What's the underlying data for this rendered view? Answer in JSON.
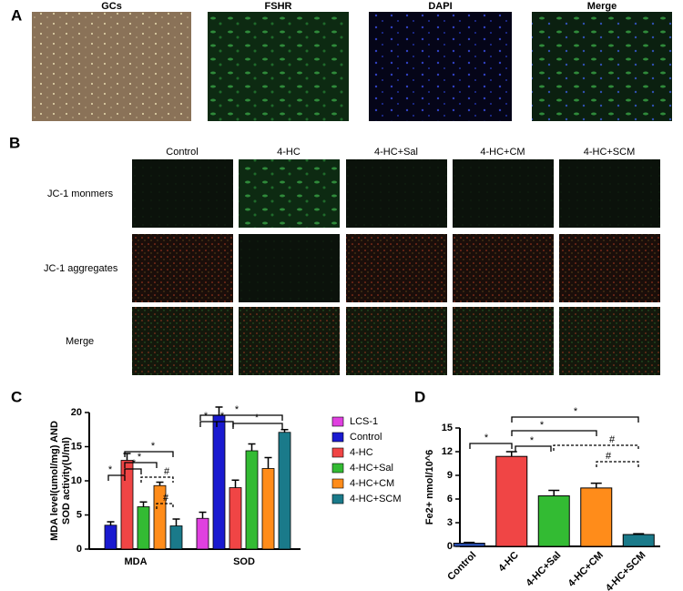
{
  "figure": {
    "panel_labels": [
      "A",
      "B",
      "C",
      "D"
    ],
    "a_titles": [
      "GCs",
      "FSHR",
      "DAPI",
      "Merge"
    ],
    "b_columns": [
      "Control",
      "4-HC",
      "4-HC+Sal",
      "4-HC+CM",
      "4-HC+SCM"
    ],
    "b_rows": [
      "JC-1 monmers",
      "JC-1 aggregates",
      "Merge"
    ]
  },
  "chart_data": [
    {
      "type": "bar",
      "y_label": [
        "MDA level(umol/mg) AND",
        "SOD  activity(U/ml)"
      ],
      "categories": [
        "MDA",
        "SOD"
      ],
      "series": [
        {
          "name": "LCS-1",
          "color": "#e040e0",
          "values": [
            null,
            4.5
          ],
          "errors": [
            null,
            0.9
          ]
        },
        {
          "name": "Control",
          "color": "#1a1ad0",
          "values": [
            3.5,
            19.6
          ],
          "errors": [
            0.5,
            1.2
          ]
        },
        {
          "name": "4-HC",
          "color": "#f04545",
          "values": [
            13,
            9
          ],
          "errors": [
            1.0,
            1.1
          ]
        },
        {
          "name": "4-HC+Sal",
          "color": "#33bb33",
          "values": [
            6.2,
            14.4
          ],
          "errors": [
            0.7,
            1.0
          ]
        },
        {
          "name": "4-HC+CM",
          "color": "#ff8c1a",
          "values": [
            9.3,
            11.8
          ],
          "errors": [
            0.5,
            1.6
          ]
        },
        {
          "name": "4-HC+SCM",
          "color": "#1a7a8a",
          "values": [
            3.4,
            17.1
          ],
          "errors": [
            1.0,
            0.4
          ]
        }
      ],
      "ylim": [
        0,
        20
      ],
      "yticks": [
        0,
        5,
        10,
        15,
        20
      ],
      "annotations": [
        "*",
        "*",
        "*",
        "*",
        "#",
        "#",
        "*",
        "*",
        "*",
        "*"
      ]
    },
    {
      "type": "bar",
      "y_label": "Fe2+ nmol/10^6",
      "categories": [
        "Control",
        "4-HC",
        "4-HC+Sal",
        "4-HC+CM",
        "4-HC+SCM"
      ],
      "values": [
        0.4,
        11.4,
        6.4,
        7.4,
        1.5
      ],
      "errors": [
        0.1,
        0.6,
        0.7,
        0.6,
        0.1
      ],
      "colors": [
        "#2a4fb0",
        "#f04545",
        "#33bb33",
        "#ff8c1a",
        "#1a7a8a"
      ],
      "ylim": [
        0,
        15
      ],
      "yticks": [
        0,
        3,
        6,
        9,
        12,
        15
      ],
      "annotations": [
        "*",
        "*",
        "*",
        "*",
        "#",
        "#"
      ]
    }
  ]
}
